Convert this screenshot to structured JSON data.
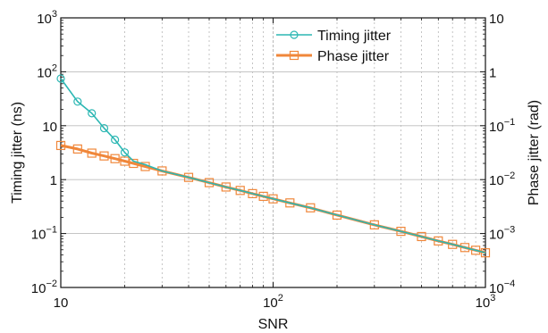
{
  "chart_data": {
    "type": "line",
    "title": "",
    "xlabel": "SNR",
    "ylabel": "Timing jitter (ns)",
    "ylabel_right": "Phase jitter (rad)",
    "xscale": "log",
    "yscale": "log",
    "xlim": [
      10,
      1000
    ],
    "ylim": [
      0.01,
      1000
    ],
    "ylim_right": [
      0.0001,
      10
    ],
    "grid": "on",
    "legend_position": "top-right",
    "x_tick_labels": [
      {
        "base": "10",
        "exp": ""
      },
      {
        "base": "10",
        "exp": "2"
      },
      {
        "base": "10",
        "exp": "3"
      }
    ],
    "y_tick_labels": [
      {
        "base": "10",
        "exp": "−2"
      },
      {
        "base": "10",
        "exp": "−1"
      },
      {
        "base": "1",
        "exp": ""
      },
      {
        "base": "10",
        "exp": ""
      },
      {
        "base": "10",
        "exp": "2"
      },
      {
        "base": "10",
        "exp": "3"
      }
    ],
    "y_right_tick_labels": [
      {
        "base": "10",
        "exp": "−4"
      },
      {
        "base": "10",
        "exp": "−3"
      },
      {
        "base": "10",
        "exp": "−2"
      },
      {
        "base": "10",
        "exp": "−1"
      },
      {
        "base": "1",
        "exp": ""
      },
      {
        "base": "10",
        "exp": ""
      }
    ],
    "series": [
      {
        "name": "Timing jitter",
        "color": "#2bb7b3",
        "marker": "circle",
        "x": [
          10,
          12,
          14,
          16,
          18,
          20,
          22,
          25,
          30,
          40,
          50,
          60,
          70,
          80,
          90,
          100,
          120,
          150,
          200,
          300,
          400,
          500,
          600,
          700,
          800,
          900,
          1000
        ],
        "y": [
          75,
          28,
          17,
          9,
          5.5,
          3.2,
          2.2,
          1.9,
          1.45,
          1.1,
          0.88,
          0.73,
          0.63,
          0.55,
          0.49,
          0.44,
          0.37,
          0.3,
          0.22,
          0.145,
          0.11,
          0.088,
          0.073,
          0.063,
          0.055,
          0.049,
          0.044
        ]
      },
      {
        "name": "Phase jitter",
        "color": "#f0873a",
        "marker": "square",
        "x": [
          10,
          12,
          14,
          16,
          18,
          20,
          22,
          25,
          30,
          40,
          50,
          60,
          70,
          80,
          90,
          100,
          120,
          150,
          200,
          300,
          400,
          500,
          600,
          700,
          800,
          900,
          1000
        ],
        "y": [
          4.3,
          3.7,
          3.1,
          2.75,
          2.45,
          2.2,
          2.0,
          1.75,
          1.45,
          1.1,
          0.88,
          0.73,
          0.63,
          0.55,
          0.49,
          0.44,
          0.37,
          0.3,
          0.22,
          0.145,
          0.11,
          0.088,
          0.073,
          0.063,
          0.055,
          0.049,
          0.044
        ]
      }
    ]
  }
}
